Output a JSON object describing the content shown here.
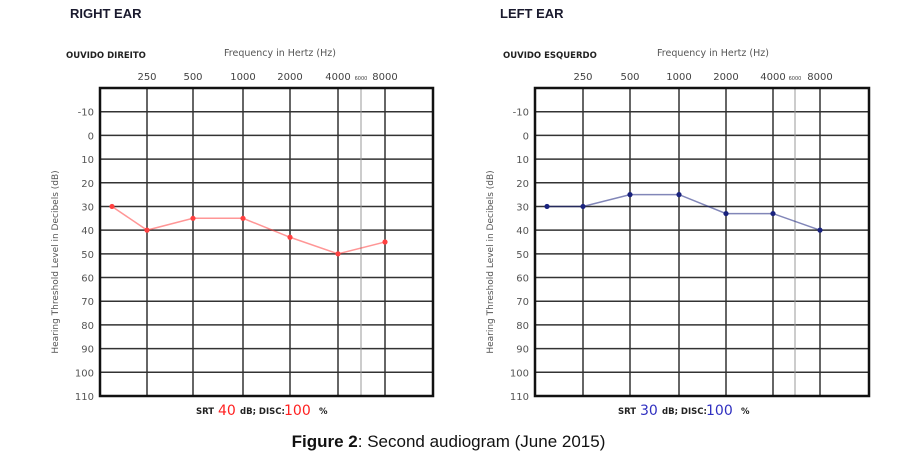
{
  "chart_data": [
    {
      "type": "line",
      "title": "RIGHT EAR",
      "subtitle": "OUVIDO DIREITO",
      "xlabel": "Frequency in Hertz (Hz)",
      "ylabel": "Hearing Threshold Level in Decibels (dB)",
      "x_tick_labels": [
        "250",
        "500",
        "1000",
        "2000",
        "4000",
        "6000",
        "8000"
      ],
      "y_ticks": [
        -10,
        0,
        10,
        20,
        30,
        40,
        50,
        60,
        70,
        80,
        90,
        100,
        110
      ],
      "ylim": [
        -20,
        110
      ],
      "y_inverted": true,
      "grid": true,
      "series": [
        {
          "x": [
            125,
            250,
            500,
            1000,
            2000,
            4000,
            8000
          ],
          "values": [
            30,
            40,
            35,
            35,
            43,
            50,
            45
          ],
          "color": "#ff4040"
        }
      ],
      "srt_label": "SRT",
      "srt_value": "40",
      "srt_unit": "dB; DISC:",
      "disc_value": "100",
      "disc_unit": "%",
      "value_color": "#ff2020"
    },
    {
      "type": "line",
      "title": "LEFT EAR",
      "subtitle": "OUVIDO ESQUERDO",
      "xlabel": "Frequency in Hertz (Hz)",
      "ylabel": "Hearing Threshold Level in Decibels (dB)",
      "x_tick_labels": [
        "250",
        "500",
        "1000",
        "2000",
        "4000",
        "6000",
        "8000"
      ],
      "y_ticks": [
        -10,
        0,
        10,
        20,
        30,
        40,
        50,
        60,
        70,
        80,
        90,
        100,
        110
      ],
      "ylim": [
        -20,
        110
      ],
      "y_inverted": true,
      "grid": true,
      "series": [
        {
          "x": [
            125,
            250,
            500,
            1000,
            2000,
            4000,
            8000
          ],
          "values": [
            30,
            30,
            25,
            25,
            33,
            33,
            40
          ],
          "color": "#1a237e"
        }
      ],
      "srt_label": "SRT",
      "srt_value": "30",
      "srt_unit": "dB; DISC:",
      "disc_value": "100",
      "disc_unit": "%",
      "value_color": "#3030c0"
    }
  ],
  "caption": {
    "label": "Figure 2",
    "text": ": Second audiogram (June 2015)"
  }
}
